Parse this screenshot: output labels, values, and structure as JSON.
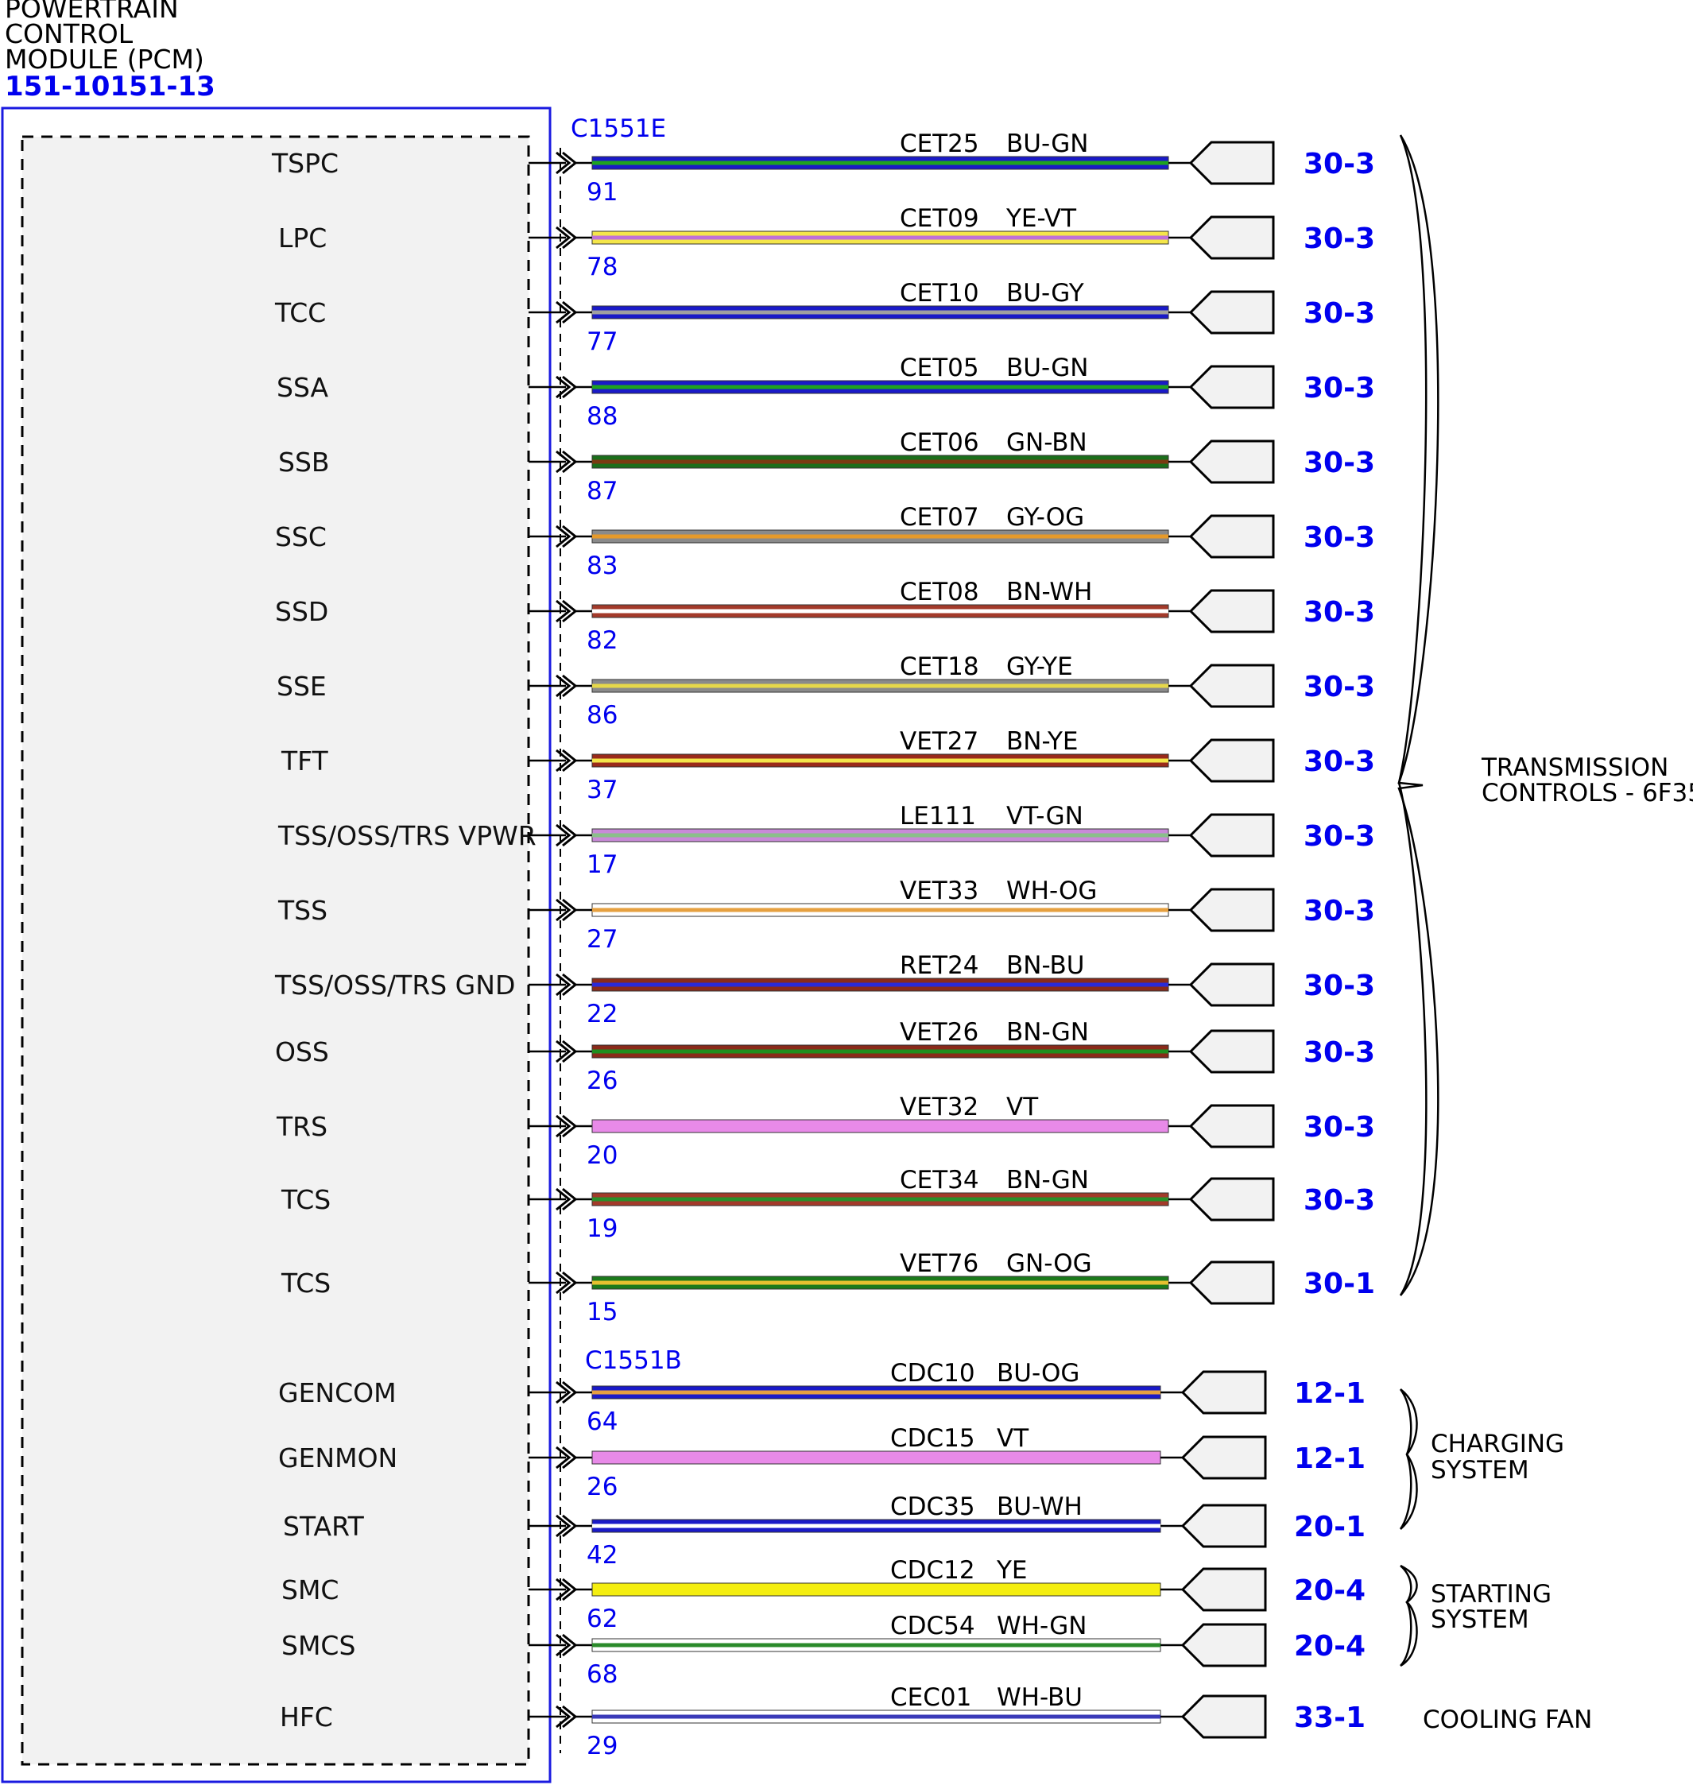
{
  "module": {
    "title_lines": [
      "POWERTRAIN",
      "CONTROL",
      "MODULE (PCM)"
    ],
    "part_number": "151-10151-13"
  },
  "connectors": [
    {
      "name": "C1551E"
    },
    {
      "name": "C1551B"
    }
  ],
  "rows": [
    {
      "label": "TSPC",
      "pin": "91",
      "circuit": "CET25",
      "color_code": "BU-GN",
      "ref": "30-3",
      "wire": [
        "#1a1ac8",
        "#1fa31f"
      ]
    },
    {
      "label": "LPC",
      "pin": "78",
      "circuit": "CET09",
      "color_code": "YE-VT",
      "ref": "30-3",
      "wire": [
        "#f4e64a",
        "#c070d8"
      ]
    },
    {
      "label": "TCC",
      "pin": "77",
      "circuit": "CET10",
      "color_code": "BU-GY",
      "ref": "30-3",
      "wire": [
        "#1a1ac8",
        "#a0a0a0"
      ]
    },
    {
      "label": "SSA",
      "pin": "88",
      "circuit": "CET05",
      "color_code": "BU-GN",
      "ref": "30-3",
      "wire": [
        "#1a1ac8",
        "#1fa31f"
      ]
    },
    {
      "label": "SSB",
      "pin": "87",
      "circuit": "CET06",
      "color_code": "GN-BN",
      "ref": "30-3",
      "wire": [
        "#1b6e1b",
        "#7a3a12"
      ]
    },
    {
      "label": "SSC",
      "pin": "83",
      "circuit": "CET07",
      "color_code": "GY-OG",
      "ref": "30-3",
      "wire": [
        "#8a8a8a",
        "#e69a2a"
      ]
    },
    {
      "label": "SSD",
      "pin": "82",
      "circuit": "CET08",
      "color_code": "BN-WH",
      "ref": "30-3",
      "wire": [
        "#a33a2a",
        "#ffffff"
      ]
    },
    {
      "label": "SSE",
      "pin": "86",
      "circuit": "CET18",
      "color_code": "GY-YE",
      "ref": "30-3",
      "wire": [
        "#8a8a8a",
        "#e6d84a"
      ]
    },
    {
      "label": "TFT",
      "pin": "37",
      "circuit": "VET27",
      "color_code": "BN-YE",
      "ref": "30-3",
      "wire": [
        "#9a2a1a",
        "#f4e64a"
      ]
    },
    {
      "label": "TSS/OSS/TRS VPWR",
      "pin": "17",
      "circuit": "LE111",
      "color_code": "VT-GN",
      "ref": "30-3",
      "wire": [
        "#c88ad8",
        "#8abf8a"
      ]
    },
    {
      "label": "TSS",
      "pin": "27",
      "circuit": "VET33",
      "color_code": "WH-OG",
      "ref": "30-3",
      "wire": [
        "#ffffff",
        "#e6a040"
      ]
    },
    {
      "label": "TSS/OSS/TRS GND",
      "pin": "22",
      "circuit": "RET24",
      "color_code": "BN-BU",
      "ref": "30-3",
      "wire": [
        "#8a2a1a",
        "#2a2ad8"
      ]
    },
    {
      "label": "OSS",
      "pin": "26",
      "circuit": "VET26",
      "color_code": "BN-GN",
      "ref": "30-3",
      "wire": [
        "#8a2a1a",
        "#1f8f1f"
      ]
    },
    {
      "label": "TRS",
      "pin": "20",
      "circuit": "VET32",
      "color_code": "VT",
      "ref": "30-3",
      "wire": [
        "#e88ae8",
        "#e88ae8"
      ]
    },
    {
      "label": "TCS",
      "pin": "19",
      "circuit": "CET34",
      "color_code": "BN-GN",
      "ref": "30-3",
      "wire": [
        "#a33a2a",
        "#2a8f2a"
      ]
    },
    {
      "label": "TCS",
      "pin": "15",
      "circuit": "VET76",
      "color_code": "GN-OG",
      "ref": "30-1",
      "wire": [
        "#1b7a1b",
        "#e6c030"
      ]
    },
    {
      "label": "GENCOM",
      "pin": "64",
      "circuit": "CDC10",
      "color_code": "BU-OG",
      "ref": "12-1",
      "wire": [
        "#1a1ac8",
        "#e6a040"
      ]
    },
    {
      "label": "GENMON",
      "pin": "26",
      "circuit": "CDC15",
      "color_code": "VT",
      "ref": "12-1",
      "wire": [
        "#e88ae8",
        "#e88ae8"
      ]
    },
    {
      "label": "START",
      "pin": "42",
      "circuit": "CDC35",
      "color_code": "BU-WH",
      "ref": "20-1",
      "wire": [
        "#1a1ac8",
        "#ffffff"
      ]
    },
    {
      "label": "SMC",
      "pin": "62",
      "circuit": "CDC12",
      "color_code": "YE",
      "ref": "20-4",
      "wire": [
        "#f4ee10",
        "#f4ee10"
      ]
    },
    {
      "label": "SMCS",
      "pin": "68",
      "circuit": "CDC54",
      "color_code": "WH-GN",
      "ref": "20-4",
      "wire": [
        "#ffffff",
        "#2a8a2a"
      ]
    },
    {
      "label": "HFC",
      "pin": "29",
      "circuit": "CEC01",
      "color_code": "WH-BU",
      "ref": "33-1",
      "wire": [
        "#ffffff",
        "#3a3ab8"
      ]
    }
  ],
  "systems": [
    {
      "lines": [
        "TRANSMISSION",
        "CONTROLS - 6F35"
      ]
    },
    {
      "lines": [
        "CHARGING",
        "SYSTEM"
      ]
    },
    {
      "lines": [
        "STARTING",
        "SYSTEM"
      ]
    },
    {
      "lines": [
        "COOLING FAN"
      ]
    }
  ],
  "icons": {
    "wire_arrow": "connector-arrow-icon",
    "plug": "connector-plug-icon",
    "brace": "brace-icon"
  }
}
